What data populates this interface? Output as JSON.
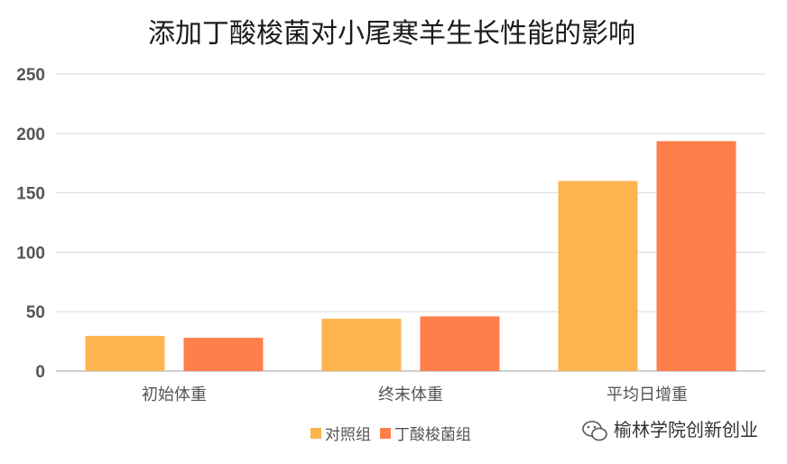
{
  "chart_data": {
    "type": "bar",
    "title": "添加丁酸梭菌对小尾寒羊生长性能的影响",
    "categories": [
      "初始体重",
      "终末体重",
      "平均日增重"
    ],
    "series": [
      {
        "name": "对照组",
        "values": [
          29.5,
          44,
          160
        ],
        "color": "#FDB44E"
      },
      {
        "name": "丁酸梭菌组",
        "values": [
          28,
          46,
          193.5
        ],
        "color": "#FF7F4A"
      }
    ],
    "yticks": [
      "0",
      "50",
      "100",
      "150",
      "200",
      "250"
    ],
    "ylim": [
      0,
      250
    ],
    "grid": true,
    "legend_position": "bottom"
  },
  "watermark": {
    "icon": "wechat-icon",
    "text": "榆林学院创新创业"
  }
}
